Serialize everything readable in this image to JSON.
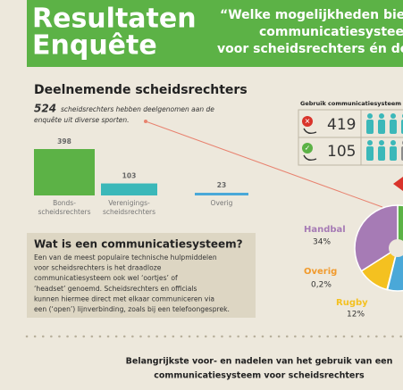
{
  "header": {
    "title_lines": [
      "Resultaten",
      "Enquête"
    ],
    "quote_lines": [
      "“Welke mogelijkheden bied",
      "communicatiesysteem",
      "voor scheidsrechters én de"
    ]
  },
  "participants": {
    "title": "Deelnemende scheidsrechters",
    "total": 524,
    "intro_lines": [
      "scheidsrechters hebben deelgenomen aan de",
      "enquête uit diverse sporten."
    ],
    "bars": [
      {
        "value": 398,
        "label_lines": [
          "Bonds-",
          "scheidsrechters"
        ],
        "color": "#5cb246"
      },
      {
        "value": 103,
        "label_lines": [
          "Verenigings-",
          "scheidsrechters"
        ],
        "color": "#3bb8b9"
      },
      {
        "value": 23,
        "label_lines": [
          "Overig"
        ],
        "color": "#4aa8d8"
      }
    ]
  },
  "explainer": {
    "title": "Wat is een communicatiesysteem?",
    "lines": [
      "Een van de meest populaire technische hulpmiddelen",
      "voor scheidsrechters is het draadloze",
      "communicatiesysteem ook wel ‘oortjes’ of",
      "‘headset’ genoemd. Scheidsrechters en officials",
      "kunnen hiermee direct met elkaar communiceren via",
      "een (‘open’) lijnverbinding, zoals bij een telefoongesprek."
    ]
  },
  "usage": {
    "title": "Gebruik communicatiesysteem sch",
    "rows": [
      {
        "count": 419,
        "color": "#d9342b"
      },
      {
        "count": 105,
        "color": "#5cb246"
      }
    ]
  },
  "sports": {
    "slices": [
      {
        "name": "Handbal",
        "value": 34,
        "value_label": "34%",
        "color": "#a67bb5"
      },
      {
        "name": "Rugby",
        "value": 12,
        "value_label": "12%",
        "color": "#f4c120"
      },
      {
        "name": "Overig",
        "value": 0.2,
        "value_label": "0,2%",
        "color": "#f19a2c"
      }
    ]
  },
  "footer": {
    "lines": [
      "Belangrijkste voor- en nadelen van het gebruik van een",
      "communicatiesysteem voor scheidsrechters"
    ]
  }
}
